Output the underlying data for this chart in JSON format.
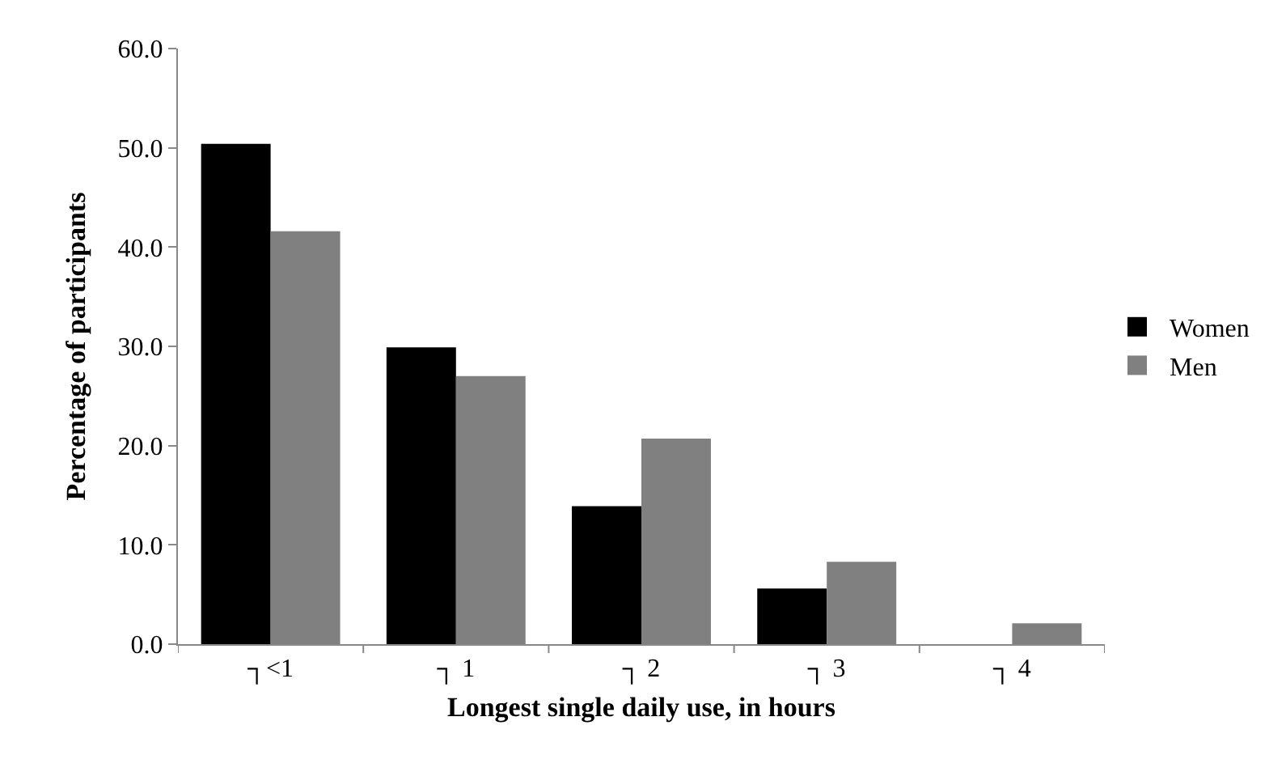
{
  "chart_data": {
    "type": "bar",
    "xlabel": "Longest single daily use, in hours",
    "ylabel": "Percentage of participants",
    "categories": [
      "┐<1",
      "┐ 1",
      "┐ 2",
      "┐ 3",
      "┐ 4"
    ],
    "series": [
      {
        "name": "Women",
        "color": "#000000",
        "values": [
          50.4,
          29.9,
          13.9,
          5.6,
          0
        ]
      },
      {
        "name": "Men",
        "color": "#808080",
        "values": [
          41.6,
          27.0,
          20.7,
          8.3,
          2.1
        ]
      }
    ],
    "ylim": [
      0,
      60
    ],
    "yticks": [
      {
        "value": 0,
        "label": "0.0"
      },
      {
        "value": 10,
        "label": "10.0"
      },
      {
        "value": 20,
        "label": "20.0"
      },
      {
        "value": 30,
        "label": "30.0"
      },
      {
        "value": 40,
        "label": "40.0"
      },
      {
        "value": 50,
        "label": "50.0"
      },
      {
        "value": 60,
        "label": "60.0"
      }
    ],
    "legend": "right"
  }
}
